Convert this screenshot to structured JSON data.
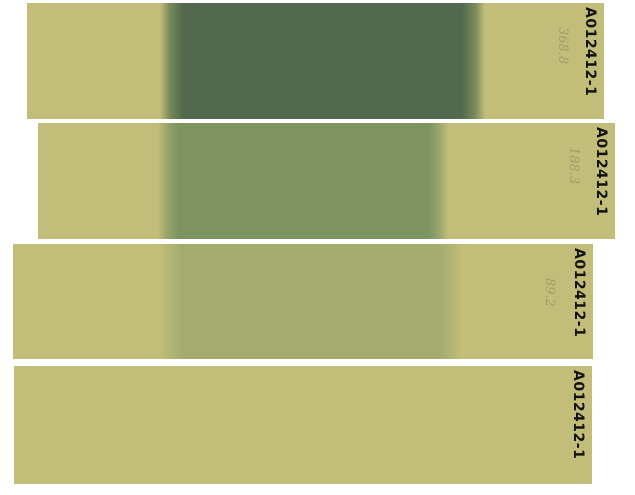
{
  "strips": [
    {
      "label": "A012412-1",
      "value": "368.8",
      "band_color": "#52694d",
      "band_edge_color": "#7a8a5a"
    },
    {
      "label": "A012412-1",
      "value": "188.3",
      "band_color": "#7d945f",
      "band_edge_color": "#9aa56c"
    },
    {
      "label": "A012412-1",
      "value": "89.2",
      "band_color": "#a3ac6e",
      "band_edge_color": "#b2b574"
    },
    {
      "label": "A012412-1",
      "value": "",
      "band_color": "#c2bd78",
      "band_edge_color": "#c2bd78"
    }
  ],
  "colors": {
    "strip_background": "#c2bd78",
    "page_background": "#ffffff"
  }
}
